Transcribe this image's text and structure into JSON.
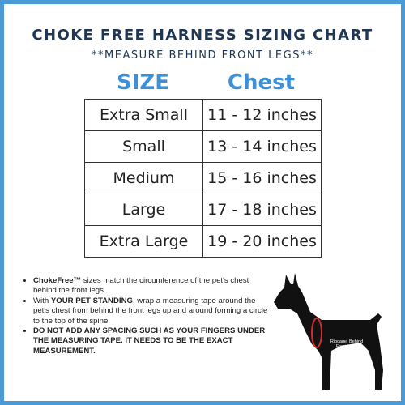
{
  "header": {
    "title": "CHOKE FREE HARNESS SIZING CHART",
    "subtitle": "**MEASURE BEHIND FRONT LEGS**"
  },
  "table": {
    "columns": [
      "SIZE",
      "Chest"
    ],
    "rows": [
      [
        "Extra Small",
        "11 - 12 inches"
      ],
      [
        "Small",
        "13 - 14 inches"
      ],
      [
        "Medium",
        "15 - 16 inches"
      ],
      [
        "Large",
        "17 - 18 inches"
      ],
      [
        "Extra Large",
        "19 - 20 inches"
      ]
    ]
  },
  "notes": [
    [
      {
        "text": "ChokeFree™",
        "bold": true
      },
      {
        "text": " sizes match the circumference of the pet's chest behind the front legs.",
        "bold": false
      }
    ],
    [
      {
        "text": " With ",
        "bold": false
      },
      {
        "text": "YOUR PET STANDING",
        "bold": true
      },
      {
        "text": ", wrap a measuring tape around the pet's chest from behind the front legs up and around forming a circle to the top of the spine.",
        "bold": false
      }
    ],
    [
      {
        "text": "DO NOT ADD ANY SPACING SUCH AS YOUR FINGERS UNDER THE MEASURING TAPE. IT NEEDS TO BE THE EXACT MEASUREMENT.",
        "bold": true
      }
    ]
  ],
  "diagram": {
    "label": "Ribcage, Behind Front Legs"
  }
}
